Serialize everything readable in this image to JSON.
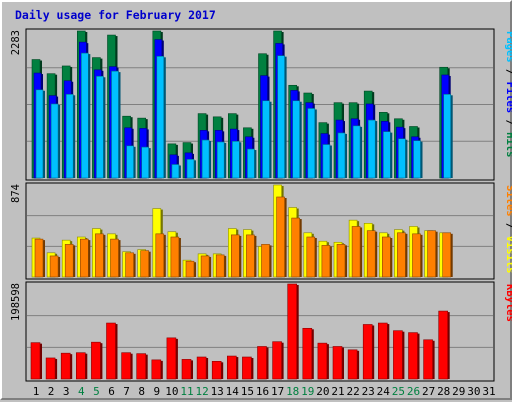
{
  "chart_data": {
    "type": "bar",
    "title": "Daily usage for February 2017",
    "colors": {
      "hits": "#008040",
      "files": "#0000ff",
      "pages": "#00c0ff",
      "visits": "#ffff00",
      "sites": "#ff8000",
      "kbytes": "#ff0000",
      "weekend_label": "#008040",
      "day_label": "#000000",
      "title": "#0000cc",
      "panel_bg": "#c0c0c0"
    },
    "x": [
      "1",
      "2",
      "3",
      "4",
      "5",
      "6",
      "7",
      "8",
      "9",
      "10",
      "11",
      "12",
      "13",
      "14",
      "15",
      "16",
      "17",
      "18",
      "19",
      "20",
      "21",
      "22",
      "23",
      "24",
      "25",
      "26",
      "27",
      "28",
      "29",
      "30",
      "31"
    ],
    "weekend_days": [
      "4",
      "5",
      "11",
      "12",
      "18",
      "19",
      "25",
      "26"
    ],
    "panels": [
      {
        "max_label": "2283",
        "legend": [
          {
            "text": "Pages",
            "series": "pages"
          },
          {
            "text": " / ",
            "series": "sep"
          },
          {
            "text": "Files",
            "series": "files"
          },
          {
            "text": " / ",
            "series": "sep"
          },
          {
            "text": "Hits",
            "series": "hits"
          }
        ],
        "ylim": [
          0,
          2283
        ],
        "series": [
          {
            "key": "hits",
            "values": [
              1840,
              1620,
              1740,
              2283,
              1870,
              2220,
              960,
              930,
              2283,
              530,
              550,
              1000,
              950,
              1000,
              780,
              1930,
              2283,
              1440,
              1320,
              860,
              1170,
              1170,
              1350,
              1020,
              920,
              800,
              0,
              1720
            ]
          },
          {
            "key": "files",
            "values": [
              1630,
              1280,
              1510,
              2110,
              1680,
              1730,
              780,
              770,
              2150,
              360,
              390,
              740,
              740,
              760,
              640,
              1590,
              2090,
              1360,
              1170,
              690,
              900,
              920,
              1150,
              880,
              790,
              640,
              0,
              1600
            ]
          },
          {
            "key": "pages",
            "values": [
              1370,
              1150,
              1300,
              1940,
              1580,
              1660,
              500,
              480,
              1890,
              210,
              290,
              590,
              560,
              570,
              450,
              1200,
              1900,
              1200,
              1080,
              520,
              700,
              810,
              900,
              720,
              610,
              580,
              0,
              1300
            ]
          }
        ]
      },
      {
        "max_label": "874",
        "legend": [
          {
            "text": "Sites",
            "series": "sites"
          },
          {
            "text": " / ",
            "series": "sep"
          },
          {
            "text": "Visits",
            "series": "visits"
          }
        ],
        "ylim": [
          0,
          874
        ],
        "series": [
          {
            "key": "visits",
            "values": [
              370,
              230,
              350,
              380,
              460,
              410,
              240,
              260,
              650,
              430,
              160,
              220,
              220,
              460,
              450,
              290,
              874,
              660,
              420,
              340,
              330,
              540,
              510,
              420,
              450,
              480,
              440,
              420
            ]
          },
          {
            "key": "sites",
            "values": [
              360,
              200,
              310,
              360,
              410,
              360,
              230,
              250,
              410,
              380,
              150,
              200,
              210,
              400,
              400,
              310,
              760,
              560,
              380,
              300,
              310,
              480,
              440,
              380,
              420,
              410,
              440,
              420
            ]
          }
        ]
      },
      {
        "max_label": "198598",
        "legend": [
          {
            "text": "KBytes",
            "series": "kbytes"
          }
        ],
        "ylim": [
          0,
          198598
        ],
        "series": [
          {
            "key": "kbytes",
            "values": [
              76000,
              44000,
              54000,
              55000,
              77000,
              117000,
              55000,
              53000,
              40000,
              86000,
              41000,
              46000,
              37000,
              48000,
              46000,
              68000,
              78000,
              198598,
              106000,
              75000,
              68000,
              61000,
              114000,
              117000,
              101000,
              97000,
              82000,
              142000
            ]
          }
        ]
      }
    ]
  }
}
